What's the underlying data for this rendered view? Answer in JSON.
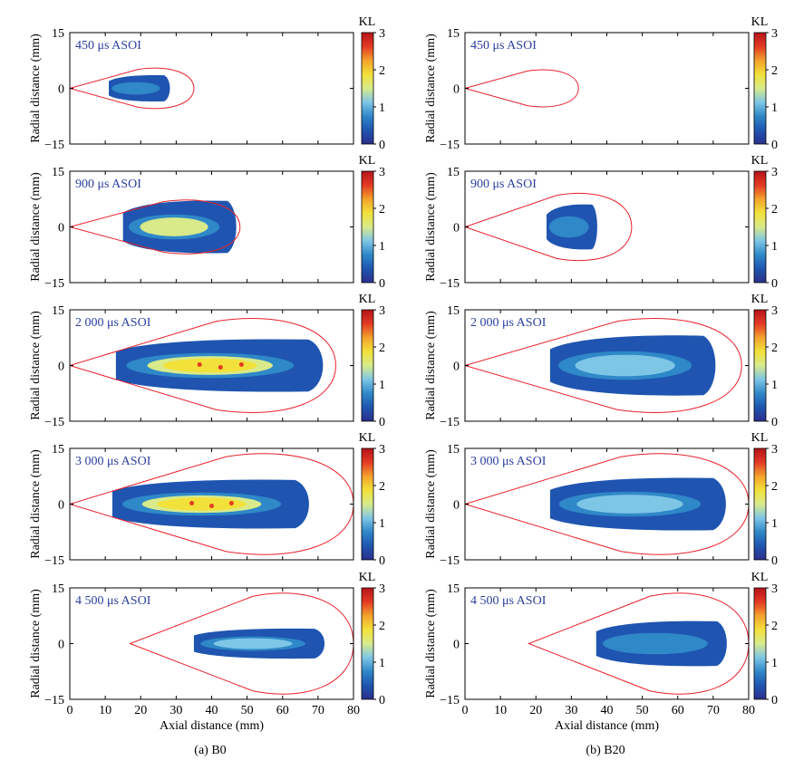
{
  "figure": {
    "cbar_label": "KL",
    "cbar_ticks": [
      "3",
      "2",
      "1",
      "0"
    ],
    "xlabel": "Axial distance (mm)",
    "ylabel": "Radial distance (mm)",
    "colors": {
      "contour": "#e8202a",
      "panel_label": "#2b3f9e",
      "axis": "#000000"
    },
    "colormap": [
      "#2a2f8c",
      "#1f55b0",
      "#2f88c8",
      "#7ec6e6",
      "#d8ea8a",
      "#f2e13a",
      "#f3a22c",
      "#e43a24",
      "#b5141a"
    ],
    "columns": [
      {
        "caption": "(a) B0"
      },
      {
        "caption": "(b) B20"
      }
    ]
  },
  "chart_data": [
    {
      "panel": "B0 450",
      "label": "450 μs ASOI",
      "type": "heatmap",
      "xlim": [
        0,
        80
      ],
      "ylim": [
        -15,
        15
      ],
      "xticks": [
        "0",
        "10",
        "20",
        "30",
        "40",
        "50",
        "60",
        "70",
        "80"
      ],
      "yticks": [
        "15",
        "0",
        "−15"
      ],
      "colorbar": {
        "label": "KL",
        "range": [
          0,
          3
        ]
      },
      "vapor_boundary": {
        "x_start": 0,
        "x_end": 35,
        "half_width": 6
      },
      "kl_region": {
        "x_start": 11,
        "x_end": 28,
        "half_width": 3.5,
        "peak_kl": 1.0
      }
    },
    {
      "panel": "B0 900",
      "label": "900 μs ASOI",
      "type": "heatmap",
      "xlim": [
        0,
        80
      ],
      "ylim": [
        -15,
        15
      ],
      "xticks": [
        "0",
        "10",
        "20",
        "30",
        "40",
        "50",
        "60",
        "70",
        "80"
      ],
      "yticks": [
        "15",
        "0",
        "−15"
      ],
      "colorbar": {
        "label": "KL",
        "range": [
          0,
          3
        ]
      },
      "vapor_boundary": {
        "x_start": 0,
        "x_end": 48,
        "half_width": 8
      },
      "kl_region": {
        "x_start": 15,
        "x_end": 47,
        "half_width": 7,
        "peak_kl": 1.5
      }
    },
    {
      "panel": "B0 2000",
      "label": "2 000 μs ASOI",
      "type": "heatmap",
      "xlim": [
        0,
        80
      ],
      "ylim": [
        -15,
        15
      ],
      "xticks": [
        "0",
        "10",
        "20",
        "30",
        "40",
        "50",
        "60",
        "70",
        "80"
      ],
      "yticks": [
        "15",
        "0",
        "−15"
      ],
      "colorbar": {
        "label": "KL",
        "range": [
          0,
          3
        ]
      },
      "vapor_boundary": {
        "x_start": 0,
        "x_end": 75,
        "half_width": 14
      },
      "kl_region": {
        "x_start": 13,
        "x_end": 72,
        "half_width": 7,
        "peak_kl": 3.0
      }
    },
    {
      "panel": "B0 3000",
      "label": "3 000 μs ASOI",
      "type": "heatmap",
      "xlim": [
        0,
        80
      ],
      "ylim": [
        -15,
        15
      ],
      "xticks": [
        "0",
        "10",
        "20",
        "30",
        "40",
        "50",
        "60",
        "70",
        "80"
      ],
      "yticks": [
        "15",
        "0",
        "−15"
      ],
      "colorbar": {
        "label": "KL",
        "range": [
          0,
          3
        ]
      },
      "vapor_boundary": {
        "x_start": 0,
        "x_end": 80,
        "half_width": 15
      },
      "kl_region": {
        "x_start": 12,
        "x_end": 68,
        "half_width": 6.5,
        "peak_kl": 3.0
      }
    },
    {
      "panel": "B0 4500",
      "label": "4 500 μs ASOI",
      "type": "heatmap",
      "xlim": [
        0,
        80
      ],
      "ylim": [
        -15,
        15
      ],
      "xticks": [
        "0",
        "10",
        "20",
        "30",
        "40",
        "50",
        "60",
        "70",
        "80"
      ],
      "yticks": [
        "15",
        "0",
        "−15"
      ],
      "colorbar": {
        "label": "KL",
        "range": [
          0,
          3
        ]
      },
      "vapor_boundary": {
        "x_start": 17,
        "x_end": 80,
        "half_width": 15
      },
      "kl_region": {
        "x_start": 35,
        "x_end": 72,
        "half_width": 4,
        "peak_kl": 1.2
      }
    },
    {
      "panel": "B20 450",
      "label": "450 μs ASOI",
      "type": "heatmap",
      "xlim": [
        0,
        80
      ],
      "ylim": [
        -15,
        15
      ],
      "xticks": [
        "0",
        "10",
        "20",
        "30",
        "40",
        "50",
        "60",
        "70",
        "80"
      ],
      "yticks": [
        "15",
        "0",
        "−15"
      ],
      "colorbar": {
        "label": "KL",
        "range": [
          0,
          3
        ]
      },
      "vapor_boundary": {
        "x_start": 0,
        "x_end": 32,
        "half_width": 5.5
      },
      "kl_region": null
    },
    {
      "panel": "B20 900",
      "label": "900 μs ASOI",
      "type": "heatmap",
      "xlim": [
        0,
        80
      ],
      "ylim": [
        -15,
        15
      ],
      "xticks": [
        "0",
        "10",
        "20",
        "30",
        "40",
        "50",
        "60",
        "70",
        "80"
      ],
      "yticks": [
        "15",
        "0",
        "−15"
      ],
      "colorbar": {
        "label": "KL",
        "range": [
          0,
          3
        ]
      },
      "vapor_boundary": {
        "x_start": 0,
        "x_end": 47,
        "half_width": 10
      },
      "kl_region": {
        "x_start": 23,
        "x_end": 37,
        "half_width": 6,
        "peak_kl": 0.6
      }
    },
    {
      "panel": "B20 2000",
      "label": "2 000 μs ASOI",
      "type": "heatmap",
      "xlim": [
        0,
        80
      ],
      "ylim": [
        -15,
        15
      ],
      "xticks": [
        "0",
        "10",
        "20",
        "30",
        "40",
        "50",
        "60",
        "70",
        "80"
      ],
      "yticks": [
        "15",
        "0",
        "−15"
      ],
      "colorbar": {
        "label": "KL",
        "range": [
          0,
          3
        ]
      },
      "vapor_boundary": {
        "x_start": 0,
        "x_end": 78,
        "half_width": 14
      },
      "kl_region": {
        "x_start": 24,
        "x_end": 71,
        "half_width": 8,
        "peak_kl": 1.2
      }
    },
    {
      "panel": "B20 3000",
      "label": "3 000 μs ASOI",
      "type": "heatmap",
      "xlim": [
        0,
        80
      ],
      "ylim": [
        -15,
        15
      ],
      "xticks": [
        "0",
        "10",
        "20",
        "30",
        "40",
        "50",
        "60",
        "70",
        "80"
      ],
      "yticks": [
        "15",
        "0",
        "−15"
      ],
      "colorbar": {
        "label": "KL",
        "range": [
          0,
          3
        ]
      },
      "vapor_boundary": {
        "x_start": 0,
        "x_end": 80,
        "half_width": 15
      },
      "kl_region": {
        "x_start": 24,
        "x_end": 74,
        "half_width": 7,
        "peak_kl": 1.2
      }
    },
    {
      "panel": "B20 4500",
      "label": "4 500 μs ASOI",
      "type": "heatmap",
      "xlim": [
        0,
        80
      ],
      "ylim": [
        -15,
        15
      ],
      "xticks": [
        "0",
        "10",
        "20",
        "30",
        "40",
        "50",
        "60",
        "70",
        "80"
      ],
      "yticks": [
        "15",
        "0",
        "−15"
      ],
      "colorbar": {
        "label": "KL",
        "range": [
          0,
          3
        ]
      },
      "vapor_boundary": {
        "x_start": 18,
        "x_end": 80,
        "half_width": 15
      },
      "kl_region": {
        "x_start": 37,
        "x_end": 74,
        "half_width": 6,
        "peak_kl": 1.0
      }
    }
  ]
}
